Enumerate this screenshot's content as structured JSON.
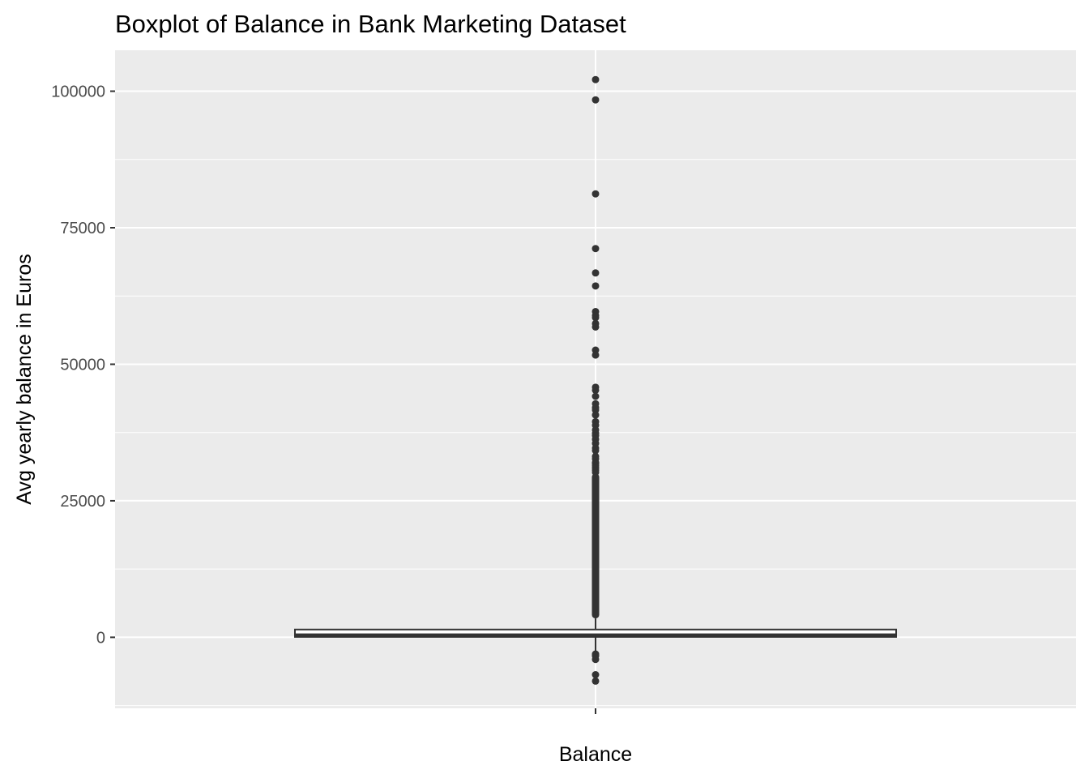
{
  "chart_data": {
    "type": "boxplot",
    "title": "Boxplot of Balance in Bank Marketing Dataset",
    "xlabel": "Balance",
    "ylabel": "Avg yearly balance in Euros",
    "categories": [
      "Balance"
    ],
    "ylim": [
      -13000,
      107500
    ],
    "yticks": [
      0,
      25000,
      50000,
      75000,
      100000
    ],
    "ytick_labels": [
      "0",
      "25000",
      "50000",
      "75000",
      "100000"
    ],
    "grid": true,
    "legend": "none",
    "box": {
      "lower_whisker": -2800,
      "q1": 72,
      "median": 448,
      "q3": 1428,
      "upper_whisker": 3460
    },
    "outliers_dense_range": [
      3460,
      30000
    ],
    "outliers": [
      102127,
      98417,
      81204,
      71188,
      66721,
      64343,
      59649,
      58932,
      58544,
      57435,
      56831,
      52587,
      51683,
      45789,
      45248,
      44134,
      42770,
      42045,
      41630,
      40711,
      39485,
      38845,
      37982,
      37373,
      36935,
      36252,
      35515,
      34646,
      34204,
      33129,
      32685,
      32020,
      31800,
      31400,
      31000,
      30600,
      30200,
      -3058,
      -3372,
      -3313,
      -4057,
      -6847,
      -8019
    ],
    "colors": {
      "panel": "#ebebeb",
      "grid": "#ffffff",
      "points": "#333333",
      "box_fill": "#ffffff",
      "box_stroke": "#333333"
    }
  }
}
